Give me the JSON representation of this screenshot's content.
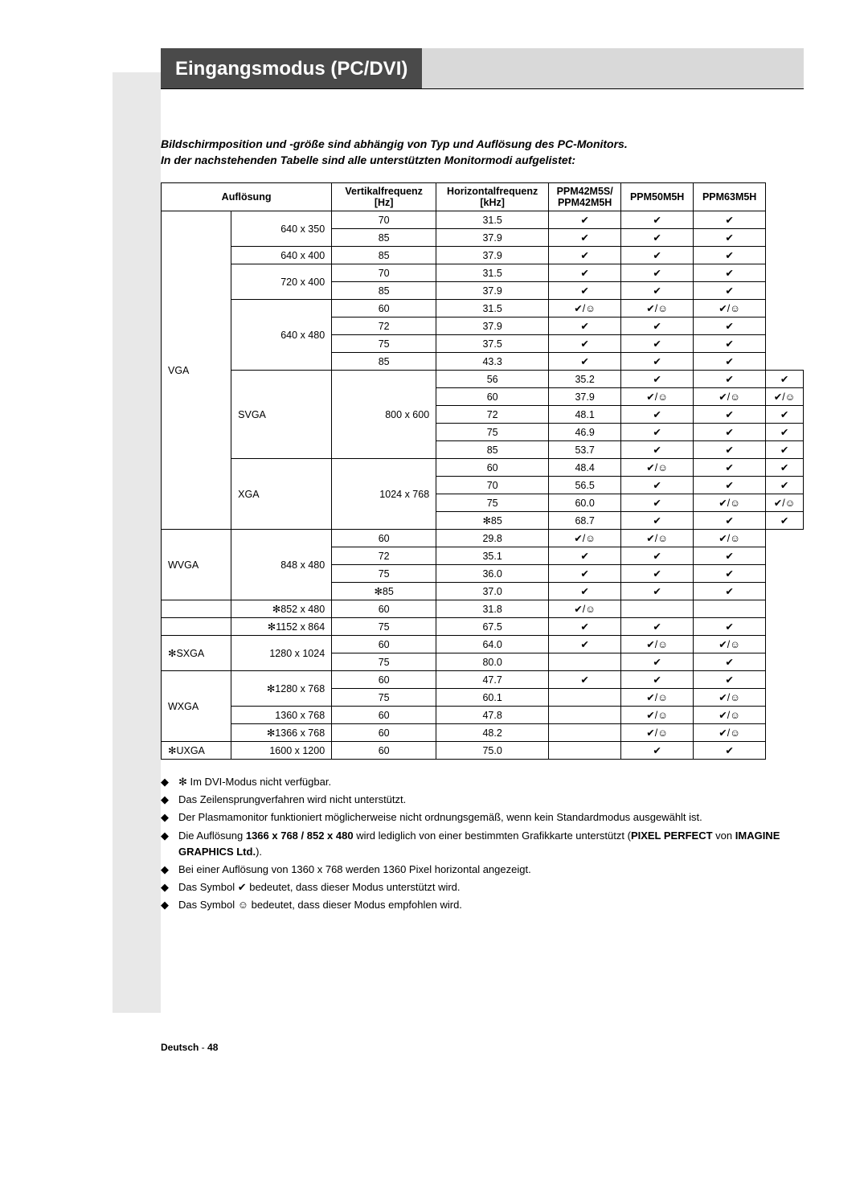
{
  "heading": "Eingangsmodus (PC/DVI)",
  "intro1": "Bildschirmposition und -größe sind abhängig von Typ und Auflösung des PC-Monitors.",
  "intro2": "In der nachstehenden Tabelle sind alle unterstützten Monitormodi aufgelistet:",
  "headers": {
    "aufloesung": "Auflösung",
    "vf": "Vertikalfrequenz",
    "vf_unit": "[Hz]",
    "hf": "Horizontalfrequenz",
    "hf_unit": "[kHz]",
    "m1a": "PPM42M5S/",
    "m1b": "PPM42M5H",
    "m2": "PPM50M5H",
    "m3": "PPM63M5H"
  },
  "symbols": {
    "check": "✔",
    "check_smile": "✔/☺",
    "snow": "✻",
    "diamond": "◆"
  },
  "rows": [
    {
      "type": "VGA",
      "res": "640 x 350",
      "vf": "70",
      "hf": "31.5",
      "m1": "c",
      "m2": "c",
      "m3": "c",
      "tSpan": 18,
      "rSpan": 2
    },
    {
      "vf": "85",
      "hf": "37.9",
      "m1": "c",
      "m2": "c",
      "m3": "c"
    },
    {
      "res": "640 x 400",
      "vf": "85",
      "hf": "37.9",
      "m1": "c",
      "m2": "c",
      "m3": "c",
      "rSpan": 1
    },
    {
      "res": "720 x 400",
      "vf": "70",
      "hf": "31.5",
      "m1": "c",
      "m2": "c",
      "m3": "c",
      "rSpan": 2
    },
    {
      "vf": "85",
      "hf": "37.9",
      "m1": "c",
      "m2": "c",
      "m3": "c"
    },
    {
      "res": "640 x 480",
      "vf": "60",
      "hf": "31.5",
      "m1": "cs",
      "m2": "cs",
      "m3": "cs",
      "rSpan": 4
    },
    {
      "vf": "72",
      "hf": "37.9",
      "m1": "c",
      "m2": "c",
      "m3": "c"
    },
    {
      "vf": "75",
      "hf": "37.5",
      "m1": "c",
      "m2": "c",
      "m3": "c"
    },
    {
      "vf": "85",
      "hf": "43.3",
      "m1": "c",
      "m2": "c",
      "m3": "c"
    },
    {
      "type": "SVGA",
      "res": "800 x 600",
      "vf": "56",
      "hf": "35.2",
      "m1": "c",
      "m2": "c",
      "m3": "c",
      "tSpan": 5,
      "rSpan": 5
    },
    {
      "vf": "60",
      "hf": "37.9",
      "m1": "cs",
      "m2": "cs",
      "m3": "cs"
    },
    {
      "vf": "72",
      "hf": "48.1",
      "m1": "c",
      "m2": "c",
      "m3": "c"
    },
    {
      "vf": "75",
      "hf": "46.9",
      "m1": "c",
      "m2": "c",
      "m3": "c"
    },
    {
      "vf": "85",
      "hf": "53.7",
      "m1": "c",
      "m2": "c",
      "m3": "c"
    },
    {
      "type": "XGA",
      "res": "1024 x 768",
      "vf": "60",
      "hf": "48.4",
      "m1": "cs",
      "m2": "c",
      "m3": "c",
      "tSpan": 4,
      "rSpan": 4
    },
    {
      "vf": "70",
      "hf": "56.5",
      "m1": "c",
      "m2": "c",
      "m3": "c"
    },
    {
      "vf": "75",
      "hf": "60.0",
      "m1": "c",
      "m2": "cs",
      "m3": "cs"
    },
    {
      "vf": "✻85",
      "hf": "68.7",
      "m1": "c",
      "m2": "c",
      "m3": "c"
    },
    {
      "type": "WVGA",
      "res": "848 x 480",
      "vf": "60",
      "hf": "29.8",
      "m1": "cs",
      "m2": "cs",
      "m3": "cs",
      "tSpan": 4,
      "rSpan": 4
    },
    {
      "vf": "72",
      "hf": "35.1",
      "m1": "c",
      "m2": "c",
      "m3": "c"
    },
    {
      "vf": "75",
      "hf": "36.0",
      "m1": "c",
      "m2": "c",
      "m3": "c"
    },
    {
      "vf": "✻85",
      "hf": "37.0",
      "m1": "c",
      "m2": "c",
      "m3": "c"
    },
    {
      "type": "",
      "res": "✻852 x 480",
      "vf": "60",
      "hf": "31.8",
      "m1": "cs",
      "m2": "",
      "m3": "",
      "tSpan": 1,
      "rSpan": 1
    },
    {
      "type": "",
      "res": "✻1152 x 864",
      "vf": "75",
      "hf": "67.5",
      "m1": "c",
      "m2": "c",
      "m3": "c",
      "tSpan": 1,
      "rSpan": 1
    },
    {
      "type": "✻SXGA",
      "res": "1280 x 1024",
      "vf": "60",
      "hf": "64.0",
      "m1": "c",
      "m2": "cs",
      "m3": "cs",
      "tSpan": 2,
      "rSpan": 2
    },
    {
      "vf": "75",
      "hf": "80.0",
      "m1": "",
      "m2": "c",
      "m3": "c"
    },
    {
      "type": "WXGA",
      "res": "✻1280 x 768",
      "vf": "60",
      "hf": "47.7",
      "m1": "c",
      "m2": "c",
      "m3": "c",
      "tSpan": 4,
      "rSpan": 2
    },
    {
      "vf": "75",
      "hf": "60.1",
      "m1": "",
      "m2": "cs",
      "m3": "cs"
    },
    {
      "res": "1360 x 768",
      "vf": "60",
      "hf": "47.8",
      "m1": "",
      "m2": "cs",
      "m3": "cs",
      "rSpan": 1
    },
    {
      "res": "✻1366 x 768",
      "vf": "60",
      "hf": "48.2",
      "m1": "",
      "m2": "cs",
      "m3": "cs",
      "rSpan": 1
    },
    {
      "type": "✻UXGA",
      "res": "1600 x 1200",
      "vf": "60",
      "hf": "75.0",
      "m1": "",
      "m2": "c",
      "m3": "c",
      "tSpan": 1,
      "rSpan": 1
    }
  ],
  "notes": {
    "n1": "✻ Im DVI-Modus nicht verfügbar.",
    "n2": "Das Zeilensprungverfahren wird nicht unterstützt.",
    "n3": "Der Plasmamonitor funktioniert möglicherweise nicht ordnungsgemäß, wenn kein Standardmodus ausgewählt ist.",
    "n4a": "Die Auflösung ",
    "n4b": "1366 x 768 / 852 x 480",
    "n4c": " wird lediglich von einer bestimmten Grafikkarte unterstützt (",
    "n4d": "PIXEL PERFECT",
    "n4e": " von ",
    "n4f": "IMAGINE GRAPHICS Ltd.",
    "n4g": ").",
    "n5": "Bei einer Auflösung von 1360 x 768 werden 1360 Pixel horizontal angezeigt.",
    "n6a": "Das Symbol ",
    "n6b": "✔",
    "n6c": " bedeutet, dass dieser Modus unterstützt wird.",
    "n7a": "Das Symbol ",
    "n7b": "☺",
    "n7c": " bedeutet, dass dieser Modus empfohlen wird."
  },
  "footer": {
    "lang": "Deutsch",
    "dash": " - ",
    "page": "48"
  }
}
